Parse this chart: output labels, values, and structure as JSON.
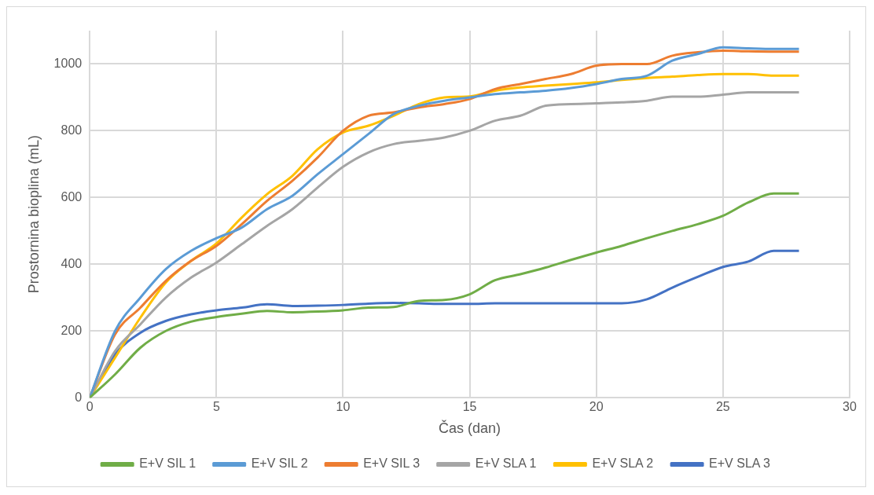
{
  "chart_data": {
    "type": "line",
    "xlabel": "Čas (dan)",
    "ylabel": "Prostornina bioplina (mL)",
    "x": [
      0,
      1,
      2,
      3,
      4,
      5,
      6,
      7,
      8,
      9,
      10,
      11,
      12,
      13,
      14,
      15,
      16,
      17,
      18,
      19,
      20,
      21,
      22,
      23,
      24,
      25,
      26,
      27,
      28
    ],
    "xlim": [
      0,
      30
    ],
    "xticks": [
      0,
      5,
      10,
      15,
      20,
      25,
      30
    ],
    "ylim": [
      0,
      1100
    ],
    "yticks": [
      0,
      200,
      400,
      600,
      800,
      1000
    ],
    "grid": true,
    "legend": "bottom",
    "marker": "none",
    "line_style": "solid",
    "series": [
      {
        "name": "E+V SIL 1",
        "color": "#70ad47",
        "values": [
          0,
          70,
          150,
          200,
          228,
          242,
          252,
          260,
          256,
          258,
          262,
          270,
          272,
          290,
          293,
          310,
          352,
          370,
          390,
          413,
          435,
          455,
          478,
          500,
          520,
          545,
          585,
          612,
          612
        ]
      },
      {
        "name": "E+V SIL 2",
        "color": "#5b9bd5",
        "values": [
          0,
          200,
          300,
          385,
          440,
          478,
          510,
          565,
          605,
          670,
          730,
          790,
          850,
          875,
          890,
          900,
          910,
          915,
          920,
          928,
          940,
          955,
          965,
          1010,
          1030,
          1050,
          1047,
          1045,
          1045
        ]
      },
      {
        "name": "E+V SIL 3",
        "color": "#ed7d31",
        "values": [
          0,
          190,
          270,
          350,
          410,
          455,
          520,
          590,
          650,
          720,
          800,
          845,
          855,
          870,
          880,
          895,
          925,
          940,
          955,
          970,
          995,
          1000,
          1000,
          1025,
          1035,
          1040,
          1038,
          1037,
          1037
        ]
      },
      {
        "name": "E+V SLA 1",
        "color": "#a5a5a5",
        "values": [
          0,
          140,
          220,
          300,
          360,
          405,
          460,
          515,
          565,
          630,
          692,
          735,
          760,
          770,
          780,
          800,
          830,
          845,
          875,
          880,
          882,
          885,
          890,
          902,
          902,
          908,
          915,
          915,
          915
        ]
      },
      {
        "name": "E+V SLA 2",
        "color": "#ffc000",
        "values": [
          0,
          120,
          240,
          345,
          410,
          462,
          540,
          610,
          665,
          745,
          795,
          815,
          845,
          880,
          900,
          903,
          920,
          930,
          935,
          940,
          945,
          952,
          958,
          962,
          967,
          970,
          970,
          965,
          965
        ]
      },
      {
        "name": "E+V SLA 3",
        "color": "#4472c4",
        "values": [
          0,
          130,
          195,
          230,
          250,
          262,
          270,
          280,
          275,
          276,
          278,
          282,
          284,
          283,
          281,
          281,
          283,
          283,
          283,
          283,
          283,
          283,
          295,
          330,
          362,
          392,
          408,
          440,
          440
        ]
      }
    ]
  }
}
